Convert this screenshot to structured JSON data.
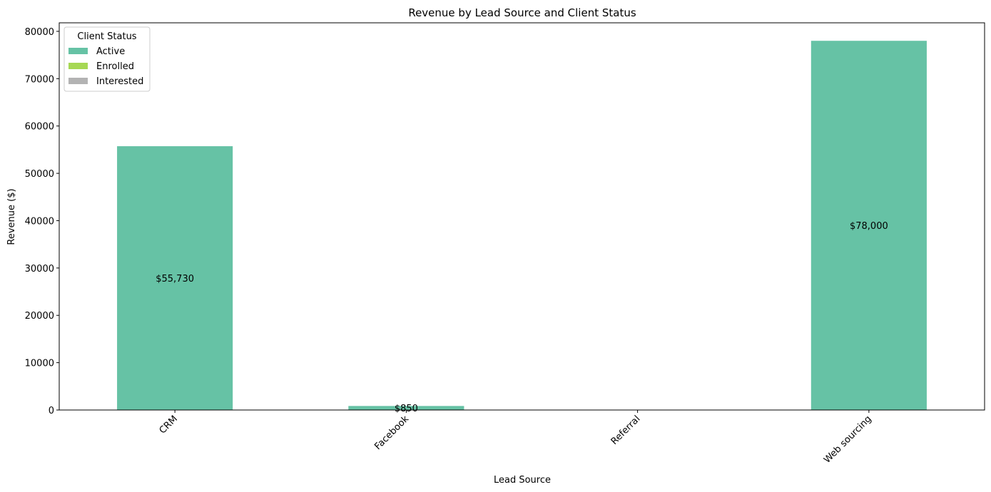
{
  "chart_data": {
    "type": "bar",
    "stacked": true,
    "title": "Revenue by Lead Source and Client Status",
    "xlabel": "Lead Source",
    "ylabel": "Revenue ($)",
    "categories": [
      "CRM",
      "Facebook",
      "Referral",
      "Web sourcing"
    ],
    "ylim": [
      0,
      81800
    ],
    "yticks": [
      0,
      10000,
      20000,
      30000,
      40000,
      50000,
      60000,
      70000,
      80000
    ],
    "grid": false,
    "legend": {
      "title": "Client Status",
      "placement": "top-left"
    },
    "series": [
      {
        "name": "Active",
        "color": "#66c2a5",
        "values": [
          55730,
          850,
          0,
          78000
        ]
      },
      {
        "name": "Enrolled",
        "color": "#a6d854",
        "values": [
          0,
          0,
          0,
          0
        ]
      },
      {
        "name": "Interested",
        "color": "#b3b3b3",
        "values": [
          0,
          0,
          0,
          0
        ]
      }
    ],
    "data_labels": [
      "$55,730",
      "$850",
      "",
      "$78,000"
    ]
  }
}
